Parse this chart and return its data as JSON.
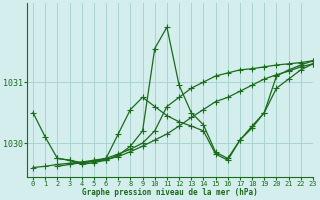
{
  "title": "Graphe pression niveau de la mer (hPa)",
  "bg_color": "#d4eeed",
  "grid_color": "#a8d4d0",
  "line_color": "#1a6b1a",
  "xlim": [
    -0.5,
    23
  ],
  "ylim": [
    1029.45,
    1032.3
  ],
  "yticks": [
    1030,
    1031
  ],
  "xticks": [
    0,
    1,
    2,
    3,
    4,
    5,
    6,
    7,
    8,
    9,
    10,
    11,
    12,
    13,
    14,
    15,
    16,
    17,
    18,
    19,
    20,
    21,
    22,
    23
  ],
  "series1": {
    "x": [
      0,
      1,
      2,
      3,
      4,
      5,
      6,
      7,
      8,
      9,
      10,
      11,
      12,
      13,
      14,
      15,
      16,
      17,
      18,
      19,
      20,
      21,
      22,
      23
    ],
    "y": [
      1030.5,
      1030.1,
      1029.75,
      1029.72,
      1029.65,
      1029.68,
      1029.72,
      1029.8,
      1029.95,
      1030.2,
      1031.55,
      1031.9,
      1030.95,
      1030.5,
      1030.3,
      1029.85,
      1029.75,
      1030.05,
      1030.25,
      1030.5,
      1031.1,
      1031.2,
      1031.28,
      1031.35
    ]
  },
  "series2": {
    "x": [
      0,
      1,
      2,
      3,
      4,
      5,
      6,
      7,
      8,
      9,
      10,
      11,
      12,
      13,
      14,
      15,
      16,
      17,
      18,
      19,
      20,
      21,
      22,
      23
    ],
    "y": [
      1029.6,
      1029.62,
      1029.65,
      1029.67,
      1029.69,
      1029.72,
      1029.75,
      1029.82,
      1029.9,
      1030.0,
      1030.2,
      1030.6,
      1030.75,
      1030.9,
      1031.0,
      1031.1,
      1031.15,
      1031.2,
      1031.22,
      1031.25,
      1031.28,
      1031.3,
      1031.32,
      1031.35
    ]
  },
  "series3": {
    "x": [
      2,
      3,
      4,
      5,
      6,
      7,
      8,
      9,
      10,
      11,
      12,
      13,
      14,
      15,
      16,
      17,
      18,
      19,
      20,
      21,
      22,
      23
    ],
    "y": [
      1029.62,
      1029.65,
      1029.68,
      1029.7,
      1029.73,
      1029.78,
      1029.86,
      1029.95,
      1030.05,
      1030.15,
      1030.28,
      1030.42,
      1030.55,
      1030.68,
      1030.75,
      1030.85,
      1030.95,
      1031.05,
      1031.12,
      1031.18,
      1031.25,
      1031.3
    ]
  },
  "series4": {
    "x": [
      2,
      3,
      4,
      5,
      6,
      7,
      8,
      9,
      10,
      11,
      12,
      13,
      14,
      15,
      16,
      17,
      18,
      19,
      20,
      21,
      22,
      23
    ],
    "y": [
      1029.75,
      1029.72,
      1029.68,
      1029.7,
      1029.75,
      1030.15,
      1030.55,
      1030.75,
      1030.6,
      1030.45,
      1030.35,
      1030.28,
      1030.2,
      1029.82,
      1029.72,
      1030.05,
      1030.28,
      1030.5,
      1030.9,
      1031.05,
      1031.2,
      1031.3
    ]
  }
}
